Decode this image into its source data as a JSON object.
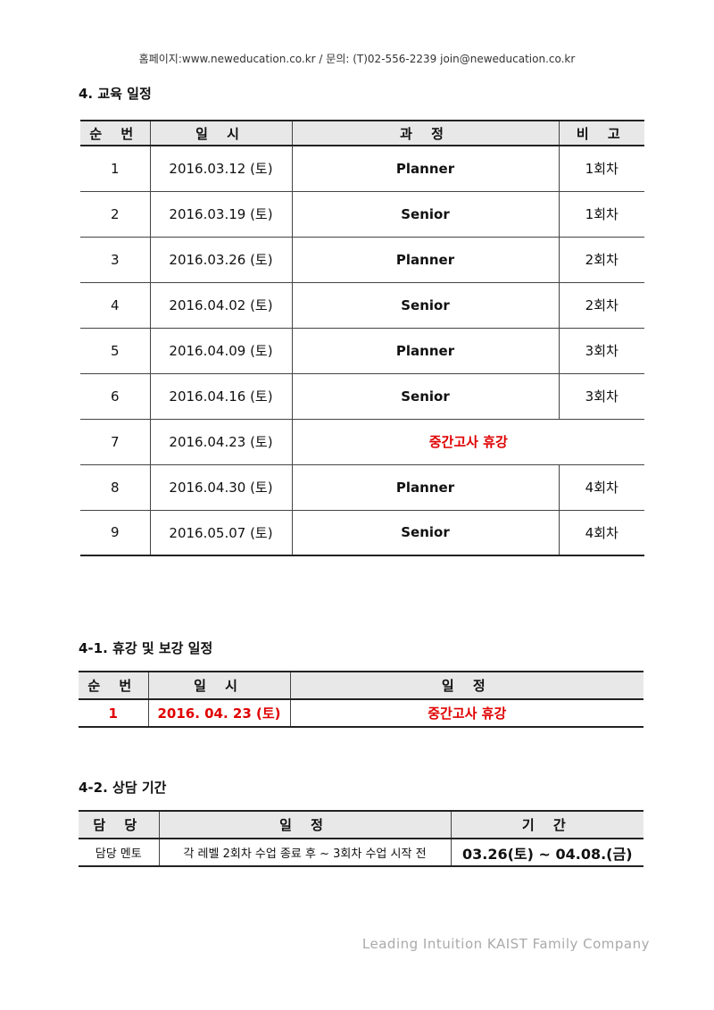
{
  "header_text": "홈페이지:www.neweducation.co.kr / 문의: (T)02-556-2239   join@neweducation.co.kr",
  "section4": {
    "title": "4. 교육 일정",
    "columns": [
      "순 번",
      "일 시",
      "과 정",
      "비 고"
    ],
    "rows": [
      {
        "no": "1",
        "date": "2016.03.12 (토)",
        "course": "Planner",
        "note": "1회차"
      },
      {
        "no": "2",
        "date": "2016.03.19 (토)",
        "course": "Senior",
        "note": "1회차"
      },
      {
        "no": "3",
        "date": "2016.03.26 (토)",
        "course": "Planner",
        "note": "2회차"
      },
      {
        "no": "4",
        "date": "2016.04.02 (토)",
        "course": "Senior",
        "note": "2회차"
      },
      {
        "no": "5",
        "date": "2016.04.09 (토)",
        "course": "Planner",
        "note": "3회차"
      },
      {
        "no": "6",
        "date": "2016.04.16 (토)",
        "course": "Senior",
        "note": "3회차"
      },
      {
        "no": "7",
        "date": "2016.04.23 (토)",
        "course": "중간고사 휴강",
        "note": ""
      },
      {
        "no": "8",
        "date": "2016.04.30 (토)",
        "course": "Planner",
        "note": "4회차"
      },
      {
        "no": "9",
        "date": "2016.05.07 (토)",
        "course": "Senior",
        "note": "4회차"
      }
    ]
  },
  "section4_1": {
    "title": "4-1. 휴강 및 보강 일정",
    "columns": [
      "순 번",
      "일 시",
      "일 정"
    ],
    "rows": [
      {
        "no": "1",
        "date": "2016. 04. 23 (토)",
        "schedule": "중간고사 휴강"
      }
    ]
  },
  "section4_2": {
    "title": "4-2. 상담 기간",
    "columns": [
      "담 당",
      "일 정",
      "기 간"
    ],
    "rows": [
      {
        "owner": "담당 멘토",
        "schedule": "각 레벨 2회차 수업 종료 후 ~ 3회차 수업 시작 전",
        "period": "03.26(토) ~ 04.08.(금)"
      }
    ]
  },
  "footer": "Leading Intuition KAIST Family Company",
  "colors": {
    "highlight": "#e00000",
    "header_bg": "#e8e8e8"
  }
}
